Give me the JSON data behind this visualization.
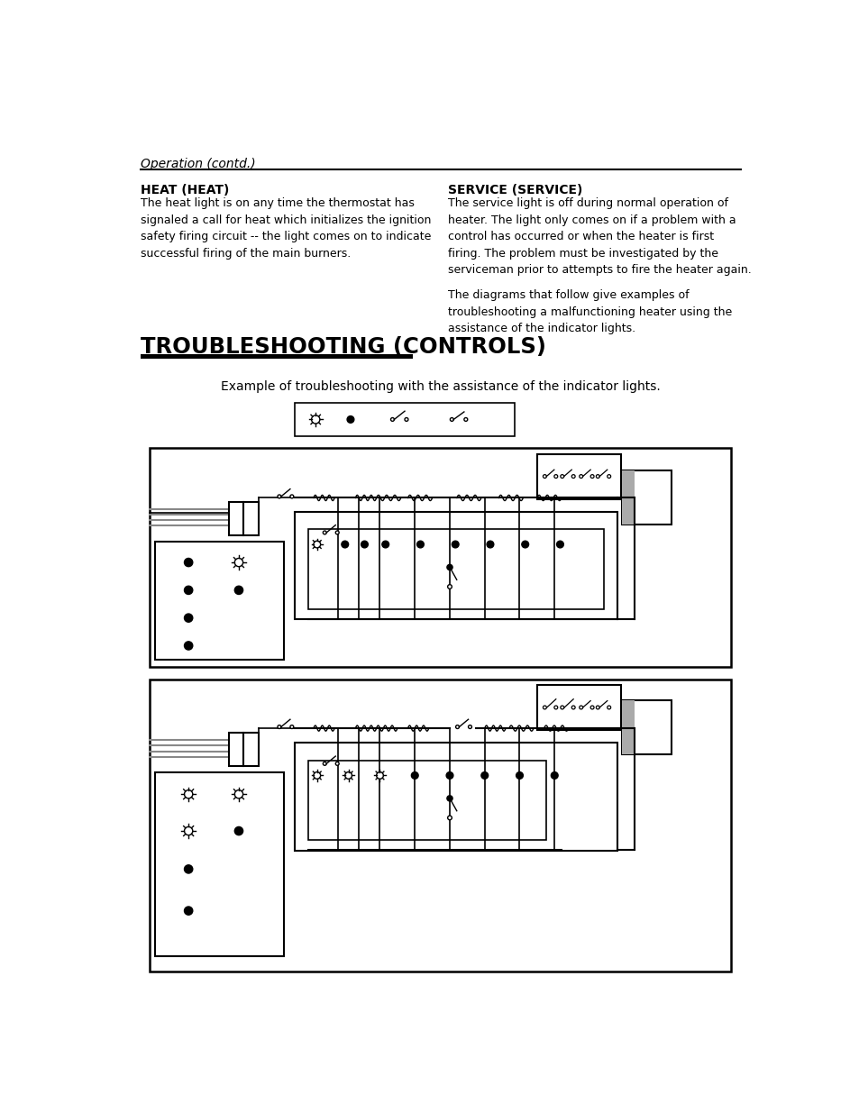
{
  "page_title": "Operation (contd.)",
  "section_title": "TROUBLESHOOTING (CONTROLS)",
  "heat_title": "HEAT (HEAT)",
  "heat_body": "The heat light is on any time the thermostat has\nsignaled a call for heat which initializes the ignition\nsafety firing circuit -- the light comes on to indicate\nsuccessful firing of the main burners.",
  "service_title": "SERVICE (SERVICE)",
  "service_body1": "The service light is off during normal operation of\nheater. The light only comes on if a problem with a\ncontrol has occurred or when the heater is first\nfiring. The problem must be investigated by the\nserviceman prior to attempts to fire the heater again.",
  "service_body2": "The diagrams that follow give examples of\ntroubleshooting a malfunctioning heater using the\nassistance of the indicator lights.",
  "caption": "Example of troubleshooting with the assistance of the indicator lights.",
  "bg_color": "#ffffff",
  "text_color": "#000000",
  "line_color": "#000000"
}
